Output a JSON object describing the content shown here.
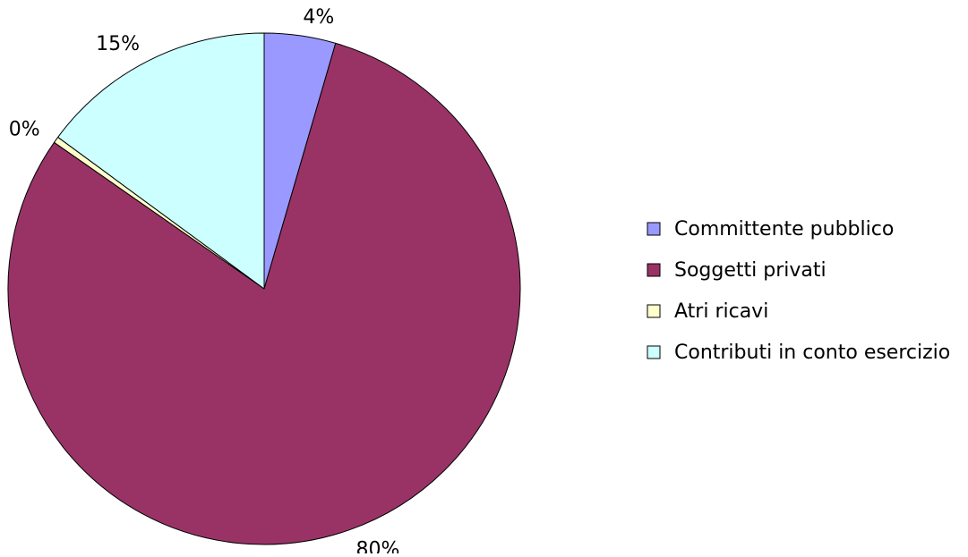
{
  "chart_data": {
    "type": "pie",
    "title": "",
    "slices": [
      {
        "label": "Committente pubblico",
        "value": 4.5,
        "display": "4%",
        "color": "#9999FF"
      },
      {
        "label": "Soggetti privati",
        "value": 80.2,
        "display": "80%",
        "color": "#993366"
      },
      {
        "label": "Atri ricavi",
        "value": 0.4,
        "display": "0%",
        "color": "#FFFFCC"
      },
      {
        "label": "Contributi in conto esercizio",
        "value": 14.9,
        "display": "15%",
        "color": "#CCFFFF"
      }
    ],
    "start_angle_deg": 0,
    "direction": "clockwise",
    "legend_position": "right",
    "outline_color": "#000000"
  }
}
